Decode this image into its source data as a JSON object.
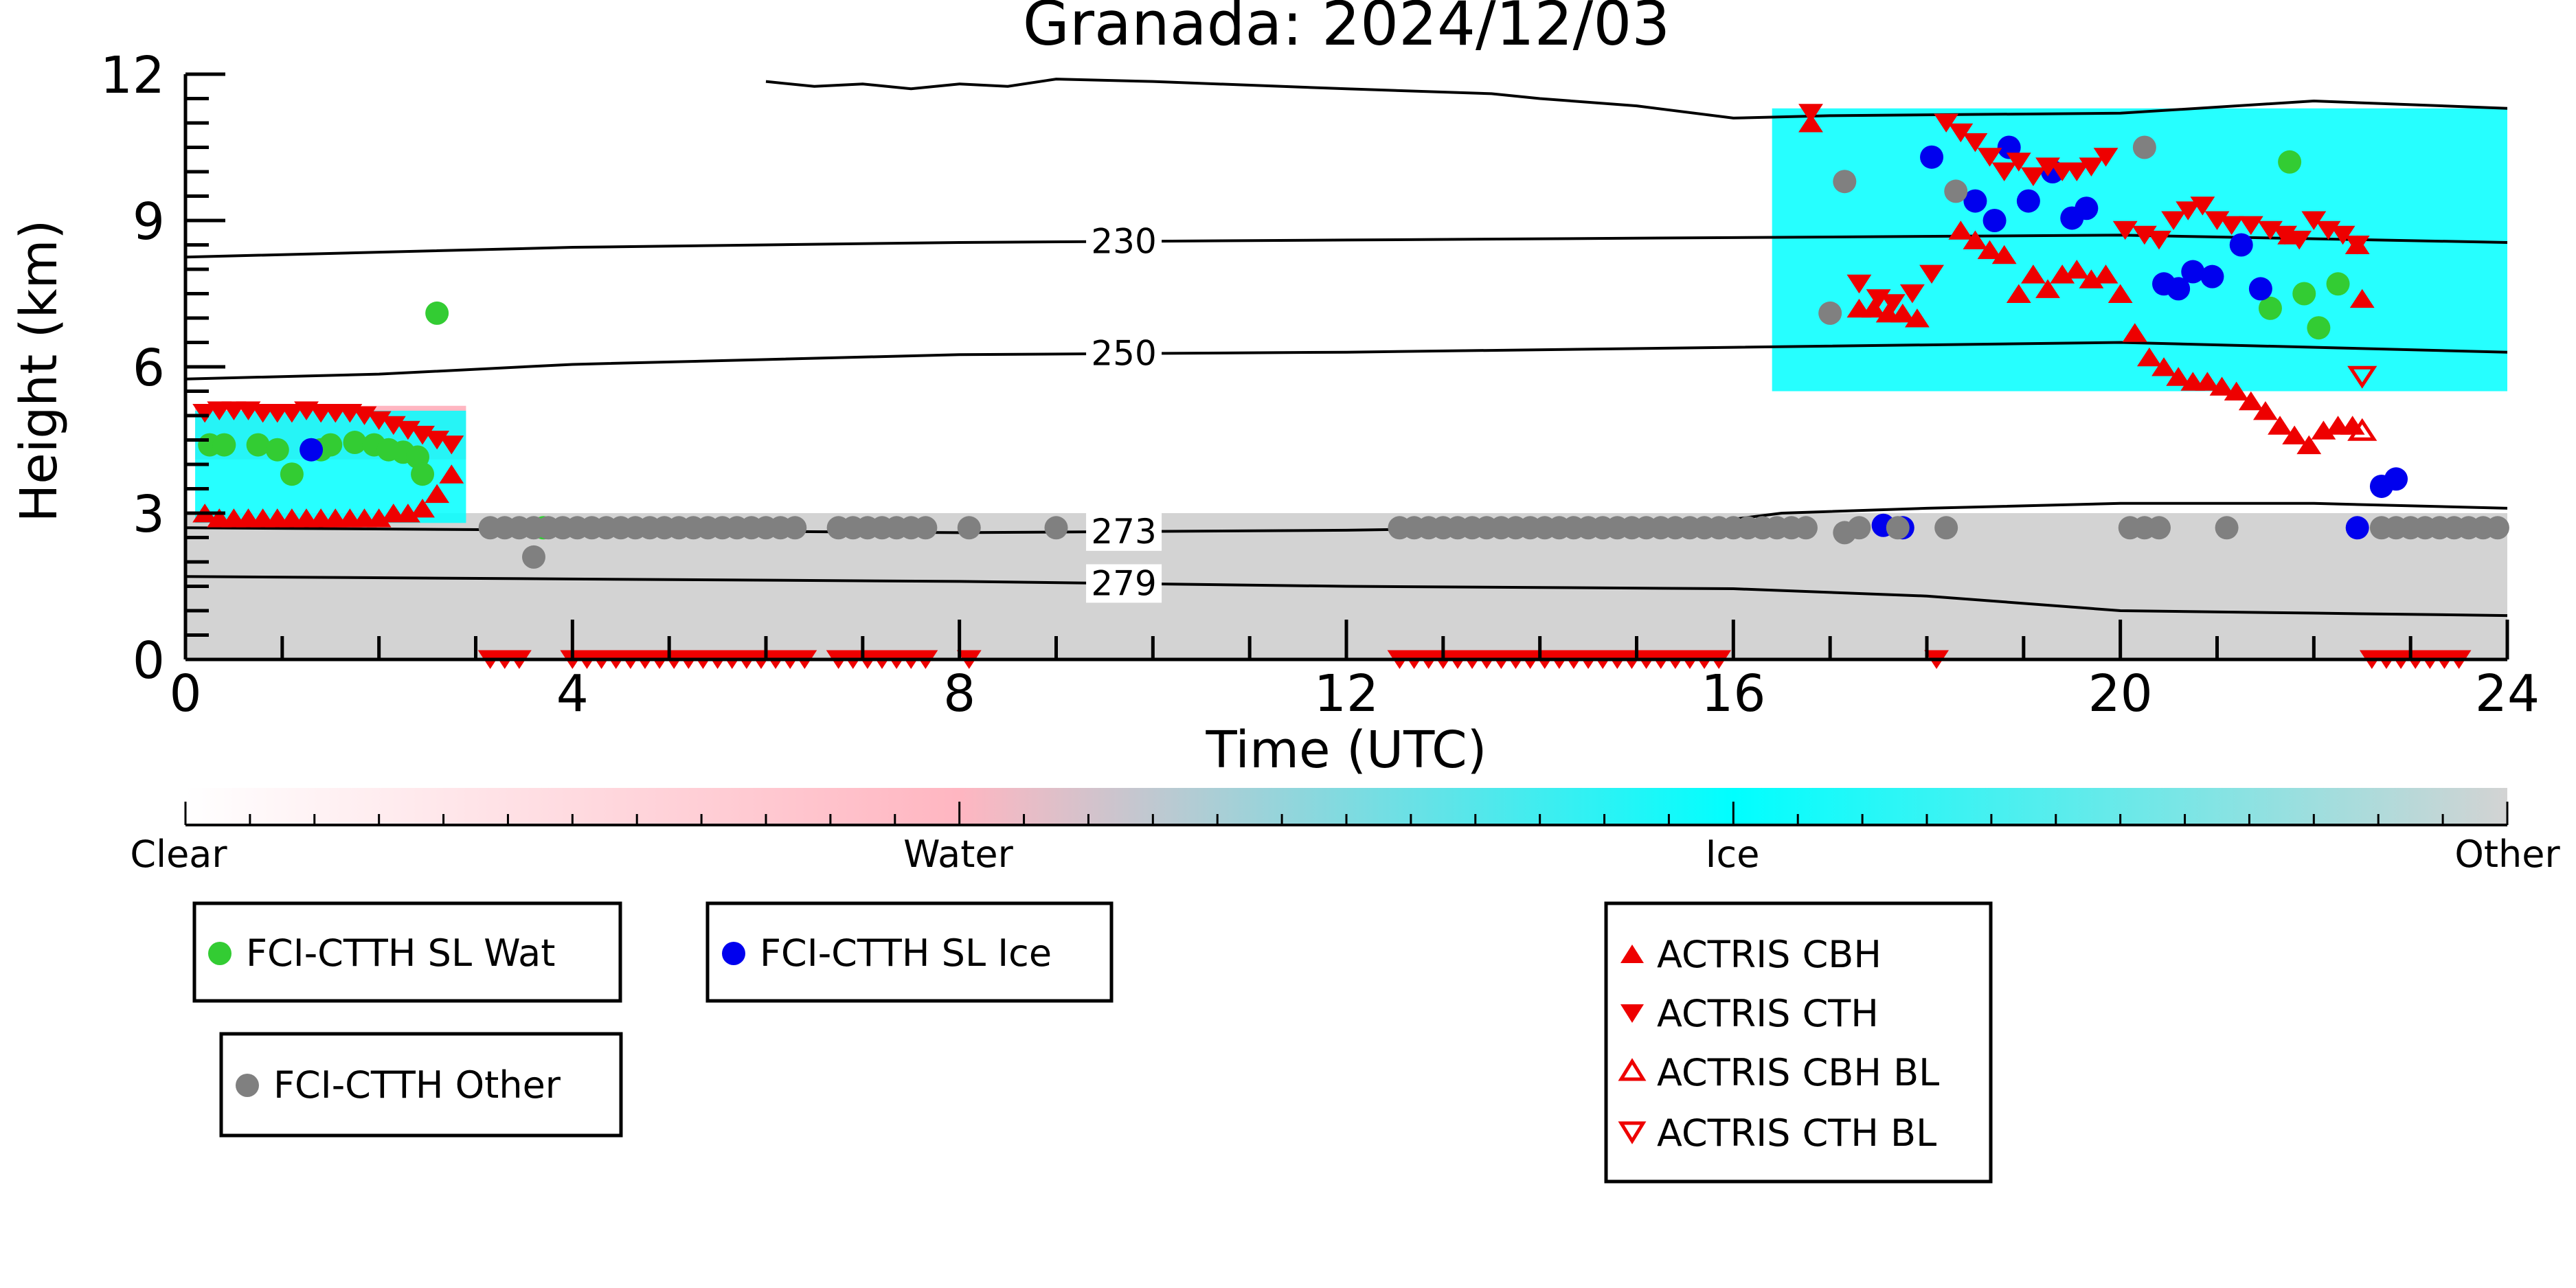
{
  "chart_data": {
    "type": "scatter",
    "title": "Granada: 2024/12/03",
    "xlabel": "Time (UTC)",
    "ylabel": "Height (km)",
    "xlim": [
      0,
      24
    ],
    "ylim": [
      0,
      12
    ],
    "x_ticks": [
      0,
      4,
      8,
      12,
      16,
      20,
      24
    ],
    "y_ticks": [
      0,
      3,
      6,
      9,
      12
    ],
    "grid": false,
    "colorbar": {
      "labels": [
        "Clear",
        "Water",
        "Ice",
        "Other"
      ],
      "colors": [
        "#ffffff",
        "#ffb6c1",
        "#00ffff",
        "#d3d3d3"
      ]
    },
    "isotherms": [
      {
        "label": "279",
        "label_x": 9.7,
        "x": [
          0,
          4,
          8,
          12,
          16,
          18,
          20,
          22,
          24
        ],
        "y": [
          1.7,
          1.65,
          1.6,
          1.5,
          1.45,
          1.3,
          1.0,
          0.95,
          0.9
        ]
      },
      {
        "label": "273",
        "label_x": 9.7,
        "x": [
          0,
          4,
          8,
          12,
          15.5,
          16.5,
          18,
          20,
          22,
          24
        ],
        "y": [
          2.7,
          2.65,
          2.6,
          2.65,
          2.75,
          3.0,
          3.1,
          3.2,
          3.2,
          3.1
        ]
      },
      {
        "label": "250",
        "label_x": 9.7,
        "x": [
          0,
          2,
          4,
          6,
          8,
          12,
          16,
          20,
          24
        ],
        "y": [
          5.75,
          5.85,
          6.05,
          6.15,
          6.25,
          6.3,
          6.4,
          6.5,
          6.3
        ]
      },
      {
        "label": "230",
        "label_x": 9.7,
        "x": [
          0,
          2,
          4,
          6,
          8,
          12,
          16,
          20,
          24
        ],
        "y": [
          8.25,
          8.35,
          8.45,
          8.5,
          8.55,
          8.6,
          8.65,
          8.7,
          8.55
        ]
      },
      {
        "label": "",
        "label_x": null,
        "x": [
          6.0,
          6.5,
          7.0,
          7.5,
          8.0,
          8.5,
          9.0,
          10,
          12,
          13.5,
          14,
          15,
          16,
          17,
          20,
          22,
          24
        ],
        "y": [
          11.85,
          11.75,
          11.8,
          11.7,
          11.8,
          11.75,
          11.9,
          11.85,
          11.7,
          11.6,
          11.5,
          11.35,
          11.1,
          11.15,
          11.2,
          11.45,
          11.3
        ]
      }
    ],
    "cloud_regions": [
      {
        "class": "Other",
        "x": [
          0,
          24
        ],
        "y_low": [
          0,
          0
        ],
        "y_high": [
          3.0,
          3.0
        ]
      },
      {
        "class": "Water",
        "x": [
          0.1,
          2.9
        ],
        "y_low": [
          4.1,
          4.1
        ],
        "y_high": [
          5.2,
          5.2
        ]
      },
      {
        "class": "Ice",
        "x": [
          0.1,
          2.9
        ],
        "y_low": [
          2.8,
          2.8
        ],
        "y_high": [
          5.1,
          5.1
        ]
      },
      {
        "class": "Ice",
        "x": [
          16.4,
          24
        ],
        "y_low": [
          5.5,
          5.5
        ],
        "y_high": [
          11.3,
          11.3
        ]
      }
    ],
    "series": [
      {
        "name": "FCI-CTTH SL Wat",
        "color": "#33cc33",
        "marker": "circle",
        "x": [
          0.25,
          0.4,
          0.75,
          0.95,
          1.1,
          1.4,
          1.5,
          1.75,
          1.95,
          2.1,
          2.25,
          2.4,
          2.45,
          2.6,
          3.7,
          21.55,
          21.75,
          21.9,
          22.05,
          22.25
        ],
        "y": [
          4.4,
          4.4,
          4.4,
          4.3,
          3.8,
          4.3,
          4.4,
          4.45,
          4.4,
          4.3,
          4.25,
          4.15,
          3.8,
          7.1,
          2.7,
          7.2,
          10.2,
          7.5,
          6.8,
          7.7
        ]
      },
      {
        "name": "FCI-CTTH SL Ice",
        "color": "#0000ee",
        "marker": "circle",
        "x": [
          1.3,
          17.55,
          17.75,
          18.05,
          18.5,
          18.7,
          18.85,
          19.05,
          19.3,
          19.5,
          19.65,
          20.45,
          20.6,
          20.75,
          20.95,
          21.25,
          21.45,
          22.45,
          22.7,
          22.85
        ],
        "y": [
          4.3,
          2.75,
          2.7,
          10.3,
          9.4,
          9.0,
          10.5,
          9.4,
          10.0,
          9.05,
          9.25,
          7.7,
          7.6,
          7.95,
          7.85,
          8.5,
          7.6,
          2.7,
          3.55,
          3.7
        ]
      },
      {
        "name": "FCI-CTTH Other",
        "color": "#808080",
        "marker": "circle",
        "x": [
          3.15,
          3.3,
          3.45,
          3.6,
          3.75,
          3.9,
          4.05,
          4.2,
          4.35,
          4.5,
          4.65,
          4.8,
          4.95,
          5.1,
          5.25,
          5.4,
          5.55,
          5.7,
          5.85,
          6.0,
          6.15,
          6.3,
          6.75,
          6.9,
          7.05,
          7.2,
          7.35,
          7.5,
          7.65,
          8.1,
          9.0,
          3.6,
          12.55,
          12.7,
          12.85,
          13.0,
          13.15,
          13.3,
          13.45,
          13.6,
          13.75,
          13.9,
          14.05,
          14.2,
          14.35,
          14.5,
          14.65,
          14.8,
          14.95,
          15.1,
          15.25,
          15.4,
          15.55,
          15.7,
          15.85,
          16.0,
          16.15,
          16.3,
          16.45,
          16.6,
          16.75,
          17.15,
          17.3,
          17.7,
          18.2,
          20.1,
          20.25,
          20.4,
          21.1,
          22.7,
          22.85,
          23.0,
          23.15,
          23.3,
          23.45,
          23.6,
          23.75,
          23.9,
          17.0,
          17.15,
          18.3,
          20.25
        ],
        "y": [
          2.7,
          2.7,
          2.7,
          2.7,
          2.7,
          2.7,
          2.7,
          2.7,
          2.7,
          2.7,
          2.7,
          2.7,
          2.7,
          2.7,
          2.7,
          2.7,
          2.7,
          2.7,
          2.7,
          2.7,
          2.7,
          2.7,
          2.7,
          2.7,
          2.7,
          2.7,
          2.7,
          2.7,
          2.7,
          2.7,
          2.7,
          2.1,
          2.7,
          2.7,
          2.7,
          2.7,
          2.7,
          2.7,
          2.7,
          2.7,
          2.7,
          2.7,
          2.7,
          2.7,
          2.7,
          2.7,
          2.7,
          2.7,
          2.7,
          2.7,
          2.7,
          2.7,
          2.7,
          2.7,
          2.7,
          2.7,
          2.7,
          2.7,
          2.7,
          2.7,
          2.7,
          2.6,
          2.7,
          2.7,
          2.7,
          2.7,
          2.7,
          2.7,
          2.7,
          2.7,
          2.7,
          2.7,
          2.7,
          2.7,
          2.7,
          2.7,
          2.7,
          2.7,
          7.1,
          9.8,
          9.6,
          10.5
        ]
      },
      {
        "name": "ACTRIS CBH",
        "color": "#ee0000",
        "marker": "triangle-up",
        "filled": true,
        "x": [
          0.2,
          0.35,
          0.5,
          0.65,
          0.8,
          0.95,
          1.1,
          1.25,
          1.4,
          1.55,
          1.7,
          1.85,
          2.0,
          2.15,
          2.3,
          2.45,
          2.6,
          2.75,
          16.8,
          17.3,
          17.45,
          17.6,
          17.75,
          17.9,
          18.35,
          18.5,
          18.65,
          18.8,
          18.95,
          19.1,
          19.25,
          19.4,
          19.55,
          19.7,
          19.85,
          20.0,
          20.15,
          20.3,
          20.45,
          20.6,
          20.75,
          20.9,
          21.05,
          21.2,
          21.35,
          21.5,
          21.65,
          21.8,
          21.95,
          22.1,
          22.25,
          22.4,
          22.5,
          21.75,
          22.45
        ],
        "y": [
          3.0,
          2.9,
          2.9,
          2.9,
          2.9,
          2.9,
          2.9,
          2.9,
          2.9,
          2.9,
          2.9,
          2.9,
          2.9,
          3.0,
          3.0,
          3.1,
          3.4,
          3.8,
          11.0,
          7.2,
          7.2,
          7.1,
          7.1,
          7.0,
          8.8,
          8.6,
          8.4,
          8.3,
          7.5,
          7.9,
          7.6,
          7.9,
          8.0,
          7.8,
          7.9,
          7.5,
          6.7,
          6.2,
          6.0,
          5.8,
          5.7,
          5.7,
          5.6,
          5.5,
          5.3,
          5.1,
          4.8,
          4.6,
          4.4,
          4.7,
          4.8,
          4.8,
          7.4,
          8.7,
          8.5
        ]
      },
      {
        "name": "ACTRIS CTH",
        "color": "#ee0000",
        "marker": "triangle-down",
        "filled": true,
        "x": [
          0.2,
          0.35,
          0.5,
          0.65,
          0.8,
          0.95,
          1.1,
          1.25,
          1.4,
          1.55,
          1.7,
          1.85,
          2.0,
          2.15,
          2.3,
          2.45,
          2.6,
          2.75,
          16.8,
          17.3,
          17.5,
          17.65,
          17.85,
          18.05,
          18.2,
          18.35,
          18.5,
          18.65,
          18.8,
          18.95,
          19.1,
          19.25,
          19.4,
          19.55,
          19.7,
          19.85,
          20.05,
          20.25,
          20.4,
          20.55,
          20.7,
          20.85,
          21.0,
          21.15,
          21.35,
          21.55,
          21.7,
          21.85,
          22.0,
          22.15,
          22.3,
          22.45,
          3.15,
          3.3,
          3.45,
          4.0,
          4.15,
          4.3,
          4.45,
          4.6,
          4.75,
          4.9,
          5.05,
          5.2,
          5.35,
          5.5,
          5.65,
          5.8,
          5.95,
          6.1,
          6.25,
          6.4,
          6.75,
          6.9,
          7.05,
          7.2,
          7.35,
          7.5,
          7.65,
          8.1,
          12.55,
          12.7,
          12.85,
          13.0,
          13.15,
          13.3,
          13.45,
          13.6,
          13.75,
          13.9,
          14.05,
          14.2,
          14.35,
          14.5,
          14.65,
          14.8,
          14.95,
          15.1,
          15.25,
          15.4,
          15.55,
          15.7,
          15.85,
          18.1,
          22.6,
          22.75,
          22.9,
          23.05,
          23.2,
          23.35,
          23.5
        ],
        "y": [
          5.05,
          5.1,
          5.1,
          5.1,
          5.05,
          5.05,
          5.05,
          5.1,
          5.05,
          5.05,
          5.05,
          5.0,
          4.9,
          4.8,
          4.7,
          4.6,
          4.5,
          4.4,
          11.2,
          7.7,
          7.4,
          7.3,
          7.5,
          7.9,
          11.0,
          10.8,
          10.6,
          10.3,
          10.0,
          10.2,
          9.9,
          10.1,
          10.0,
          10.0,
          10.1,
          10.3,
          8.8,
          8.7,
          8.6,
          9.0,
          9.2,
          9.3,
          9.0,
          8.9,
          8.9,
          8.8,
          8.7,
          8.6,
          9.0,
          8.8,
          8.7,
          8.5,
          0.0,
          0.0,
          0.0,
          0.0,
          0.0,
          0.0,
          0.0,
          0.0,
          0.0,
          0.0,
          0.0,
          0.0,
          0.0,
          0.0,
          0.0,
          0.0,
          0.0,
          0.0,
          0.0,
          0.0,
          0.0,
          0.0,
          0.0,
          0.0,
          0.0,
          0.0,
          0.0,
          0.0,
          0.0,
          0.0,
          0.0,
          0.0,
          0.0,
          0.0,
          0.0,
          0.0,
          0.0,
          0.0,
          0.0,
          0.0,
          0.0,
          0.0,
          0.0,
          0.0,
          0.0,
          0.0,
          0.0,
          0.0,
          0.0,
          0.0,
          0.0,
          0.0,
          0.0,
          0.0,
          0.0,
          0.0,
          0.0,
          0.0,
          0.0
        ]
      },
      {
        "name": "ACTRIS CBH BL",
        "color": "#ee0000",
        "marker": "triangle-up",
        "filled": false,
        "x": [
          22.5
        ],
        "y": [
          4.7
        ]
      },
      {
        "name": "ACTRIS CTH BL",
        "color": "#ee0000",
        "marker": "triangle-down",
        "filled": false,
        "x": [
          22.5
        ],
        "y": [
          5.8
        ]
      }
    ]
  },
  "legends": {
    "wat": "FCI-CTTH SL Wat",
    "ice": "FCI-CTTH SL Ice",
    "other": "FCI-CTTH Other",
    "cbh": "ACTRIS CBH",
    "cth": "ACTRIS CTH",
    "cbh_bl": "ACTRIS CBH BL",
    "cth_bl": "ACTRIS CTH BL"
  }
}
